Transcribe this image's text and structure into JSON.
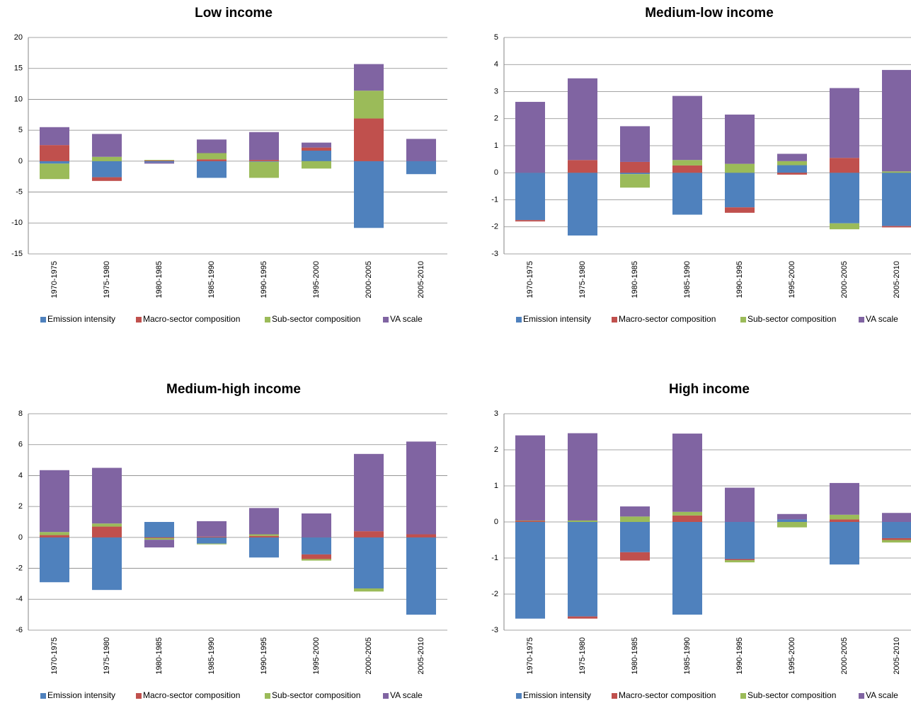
{
  "chart_data": [
    {
      "type": "bar",
      "title": "Low income",
      "categories": [
        "1970-1975",
        "1975-1980",
        "1980-1985",
        "1985-1990",
        "1990-1995",
        "1995-2000",
        "2000-2005",
        "2005-2010"
      ],
      "series": [
        {
          "name": "Emission intensity",
          "color": "#4f81bd",
          "values": [
            -0.4,
            -2.6,
            -0.2,
            -2.7,
            -0.1,
            1.7,
            -10.8,
            -2.1
          ]
        },
        {
          "name": "Macro-sector composition",
          "color": "#c0504d",
          "values": [
            2.6,
            -0.6,
            0.1,
            0.3,
            0.2,
            0.5,
            6.9,
            0
          ]
        },
        {
          "name": "Sub-sector composition",
          "color": "#9bbb59",
          "values": [
            -2.5,
            0.7,
            0.1,
            1.0,
            -2.6,
            -1.2,
            4.5,
            0
          ]
        },
        {
          "name": "VA scale",
          "color": "#8064a2",
          "values": [
            2.9,
            3.7,
            -0.2,
            2.2,
            4.5,
            0.8,
            4.3,
            3.6
          ]
        }
      ],
      "ylim": [
        -15,
        20
      ],
      "yticks": [
        -15,
        -10,
        -5,
        0,
        5,
        10,
        15,
        20
      ],
      "grid": true,
      "stacked": true,
      "legend": "bottom"
    },
    {
      "type": "bar",
      "title": "Medium-low income",
      "categories": [
        "1970-1975",
        "1975-1980",
        "1980-1985",
        "1985-1990",
        "1990-1995",
        "1995-2000",
        "2000-2005",
        "2005-2010"
      ],
      "series": [
        {
          "name": "Emission intensity",
          "color": "#4f81bd",
          "values": [
            -1.75,
            -2.32,
            -0.05,
            -1.55,
            -1.28,
            0.28,
            -1.87,
            -1.97
          ]
        },
        {
          "name": "Macro-sector composition",
          "color": "#c0504d",
          "values": [
            -0.05,
            0.47,
            0.4,
            0.27,
            -0.2,
            -0.07,
            0.55,
            -0.05
          ]
        },
        {
          "name": "Sub-sector composition",
          "color": "#9bbb59",
          "values": [
            0,
            0,
            -0.5,
            0.2,
            0.33,
            0.15,
            -0.22,
            0.05
          ]
        },
        {
          "name": "VA scale",
          "color": "#8064a2",
          "values": [
            2.62,
            3.02,
            1.32,
            2.37,
            1.82,
            0.27,
            2.58,
            3.75
          ]
        }
      ],
      "ylim": [
        -3,
        5
      ],
      "yticks": [
        -3,
        -2,
        -1,
        0,
        1,
        2,
        3,
        4,
        5
      ],
      "grid": true,
      "stacked": true,
      "legend": "bottom"
    },
    {
      "type": "bar",
      "title": "Medium-high income",
      "categories": [
        "1970-1975",
        "1975-1980",
        "1980-1985",
        "1985-1990",
        "1990-1995",
        "1995-2000",
        "2000-2005",
        "2005-2010"
      ],
      "series": [
        {
          "name": "Emission intensity",
          "color": "#4f81bd",
          "values": [
            -2.9,
            -3.4,
            1.0,
            -0.4,
            -1.3,
            -1.1,
            -3.3,
            -5.0
          ]
        },
        {
          "name": "Macro-sector composition",
          "color": "#c0504d",
          "values": [
            0.15,
            0.7,
            -0.05,
            0.05,
            0.1,
            -0.3,
            0.4,
            0.2
          ]
        },
        {
          "name": "Sub-sector composition",
          "color": "#9bbb59",
          "values": [
            0.2,
            0.2,
            -0.1,
            -0.05,
            0.1,
            -0.1,
            -0.2,
            0
          ]
        },
        {
          "name": "VA scale",
          "color": "#8064a2",
          "values": [
            4.0,
            3.6,
            -0.5,
            1.0,
            1.7,
            1.55,
            5.0,
            6.0
          ]
        }
      ],
      "ylim": [
        -6,
        8
      ],
      "yticks": [
        -6,
        -4,
        -2,
        0,
        2,
        4,
        6,
        8
      ],
      "grid": true,
      "stacked": true,
      "legend": "bottom"
    },
    {
      "type": "bar",
      "title": "High income",
      "categories": [
        "1970-1975",
        "1975-1980",
        "1980-1985",
        "1985-1990",
        "1990-1995",
        "1995-2000",
        "2000-2005",
        "2005-2010"
      ],
      "series": [
        {
          "name": "Emission intensity",
          "color": "#4f81bd",
          "values": [
            -2.68,
            -2.62,
            -0.84,
            -2.57,
            -1.03,
            0.07,
            -1.18,
            -0.45
          ]
        },
        {
          "name": "Macro-sector composition",
          "color": "#c0504d",
          "values": [
            0.03,
            -0.06,
            -0.23,
            0.18,
            -0.03,
            0,
            0.07,
            -0.05
          ]
        },
        {
          "name": "Sub-sector composition",
          "color": "#9bbb59",
          "values": [
            0.01,
            0.04,
            0.15,
            0.1,
            -0.06,
            -0.15,
            0.13,
            -0.07
          ]
        },
        {
          "name": "VA scale",
          "color": "#8064a2",
          "values": [
            2.36,
            2.42,
            0.28,
            2.17,
            0.95,
            0.15,
            0.88,
            0.25
          ]
        }
      ],
      "ylim": [
        -3,
        3
      ],
      "yticks": [
        -3,
        -2,
        -1,
        0,
        1,
        2,
        3
      ],
      "grid": true,
      "stacked": true,
      "legend": "bottom"
    }
  ]
}
